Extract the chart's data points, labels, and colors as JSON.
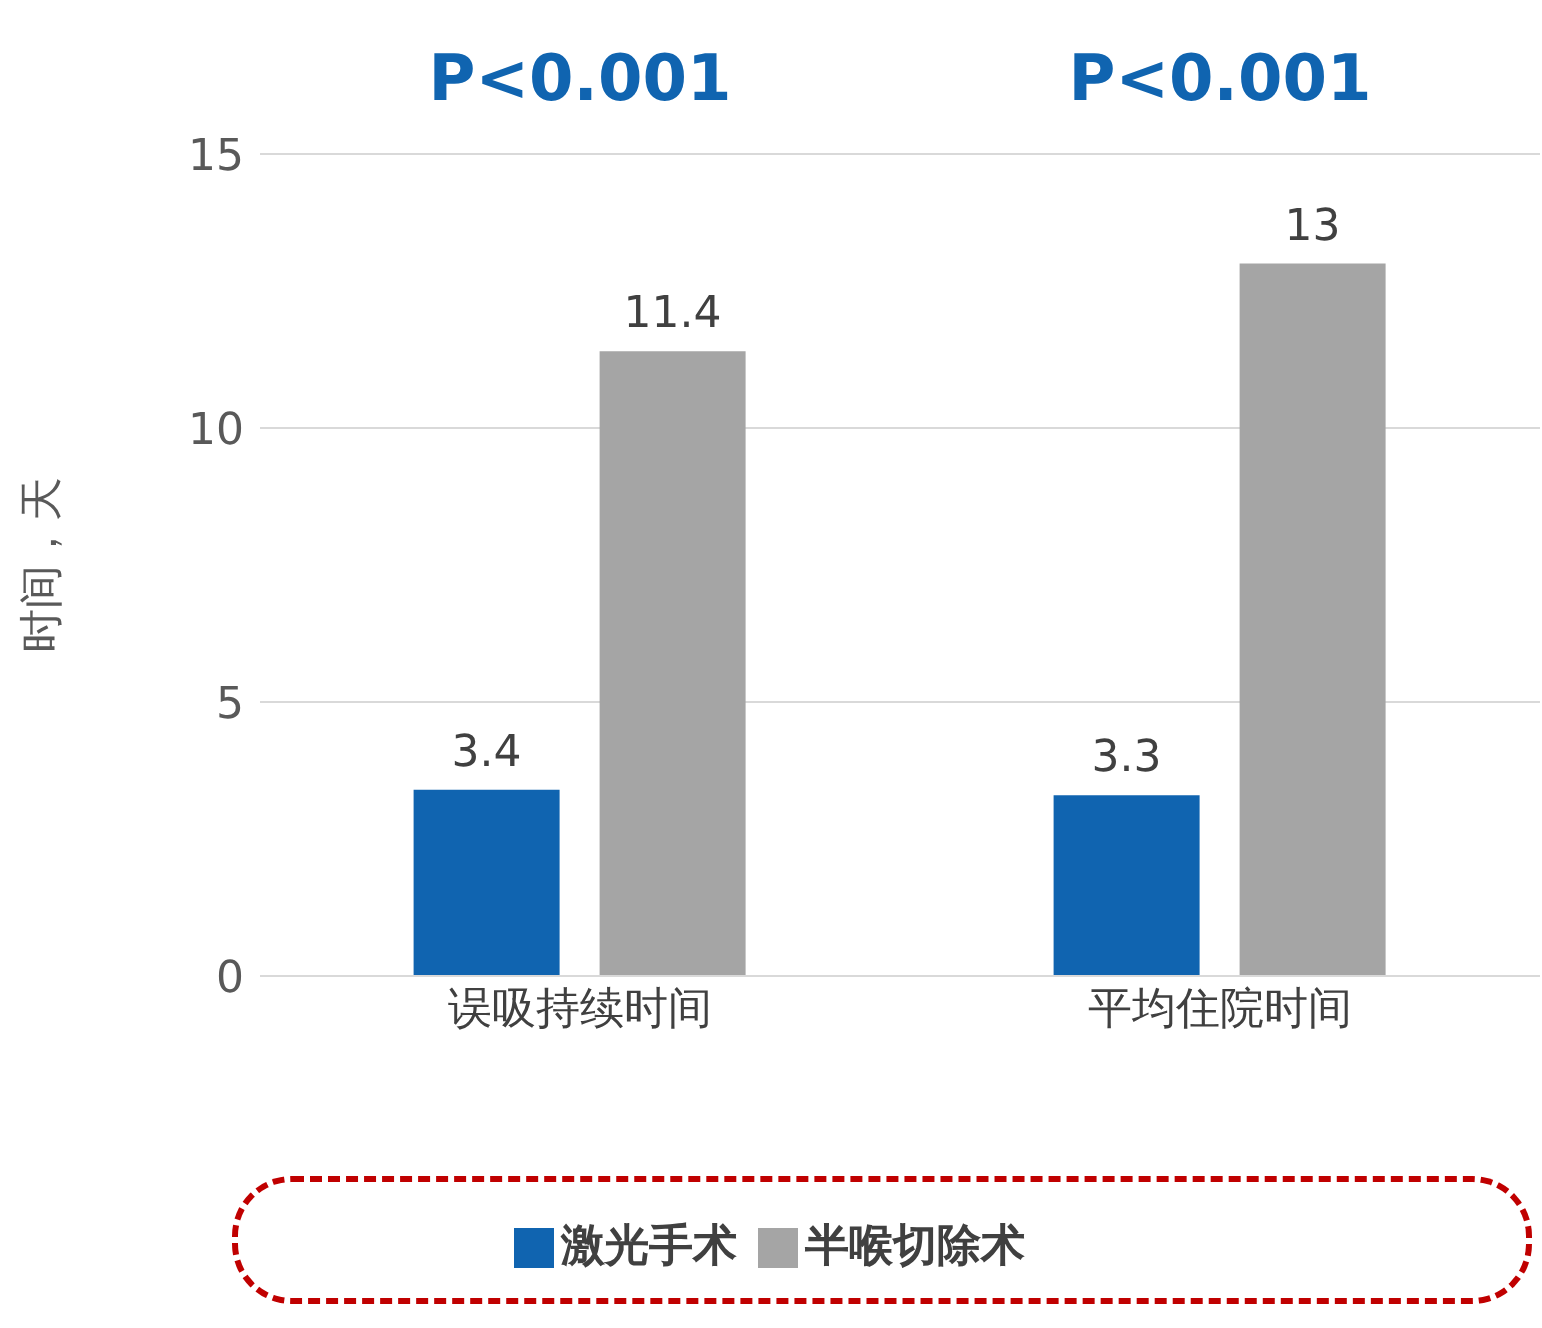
{
  "chart_data": {
    "type": "bar",
    "categories": [
      "误吸持续时间",
      "平均住院时间"
    ],
    "series": [
      {
        "name": "激光手术",
        "color": "#1064b0",
        "values": [
          3.4,
          3.3
        ]
      },
      {
        "name": "半喉切除术",
        "color": "#a5a5a5",
        "values": [
          11.4,
          13
        ]
      }
    ],
    "ylabel": "时间，天",
    "ylim": [
      0,
      15
    ],
    "yticks": [
      0,
      5,
      10,
      15
    ],
    "grid": "y",
    "data_labels": true,
    "legend": "bottom",
    "annotations": [
      "P<0.001",
      "P<0.001"
    ]
  }
}
